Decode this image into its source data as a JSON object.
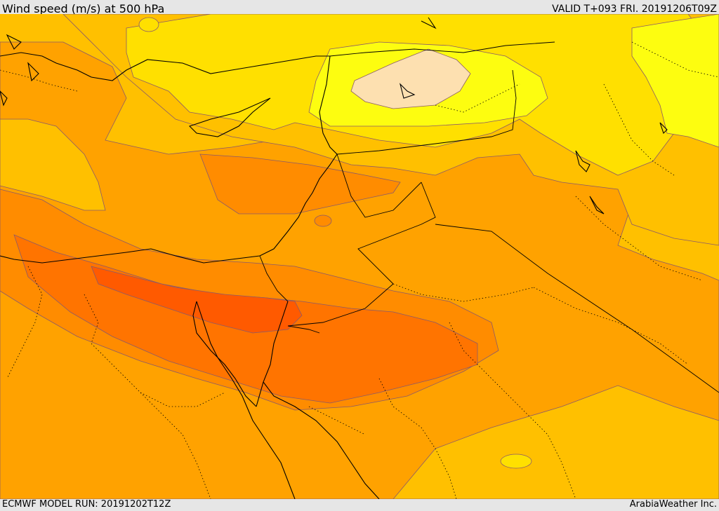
{
  "header": {
    "title": "Wind speed (m/s) at 500 hPa",
    "valid": "VALID T+093 FRI. 20191206T09Z"
  },
  "footer": {
    "model_run": "ECMWF MODEL RUN: 20191202T12Z",
    "credit": "ArabiaWeather Inc."
  },
  "colors": {
    "band_10_15": "#fdfd10",
    "band_15_20": "#ffe000",
    "band_20_25": "#ffc000",
    "band_25_30": "#ffa200",
    "band_30_35": "#ff8c00",
    "band_35_40": "#ff7400",
    "band_40_45": "#ff5a00",
    "band_below_10": "#fde0b0",
    "contour_line": "#8a5a6a",
    "coastline": "#000000"
  }
}
